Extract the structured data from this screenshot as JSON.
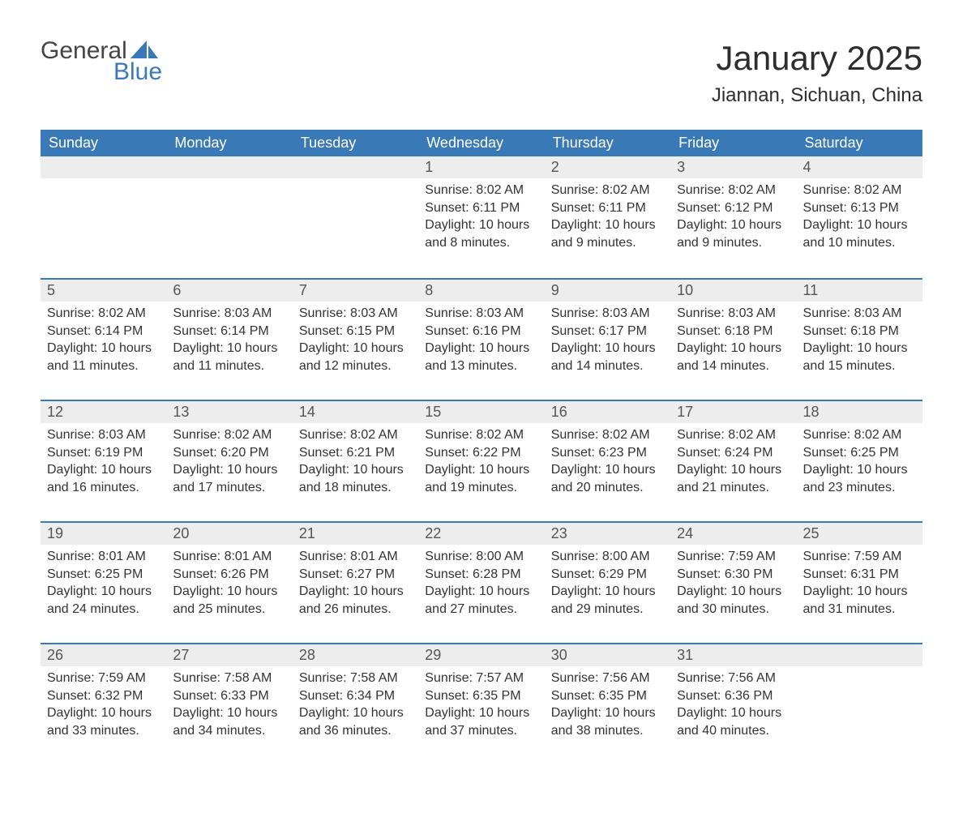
{
  "logo": {
    "word1": "General",
    "word2": "Blue",
    "word1_color": "#444444",
    "word2_color": "#3a79b7",
    "sail_color": "#3a79b7"
  },
  "header": {
    "month_title": "January 2025",
    "location": "Jiannan, Sichuan, China",
    "title_fontsize": 42,
    "location_fontsize": 24
  },
  "calendar": {
    "header_bg": "#3a79b7",
    "header_text_color": "#ffffff",
    "row_separator_color": "#3a79b7",
    "daynum_bg": "#ededed",
    "body_text_color": "#333333",
    "daynum_text_color": "#555555",
    "columns": [
      "Sunday",
      "Monday",
      "Tuesday",
      "Wednesday",
      "Thursday",
      "Friday",
      "Saturday"
    ],
    "weeks": [
      [
        null,
        null,
        null,
        {
          "n": "1",
          "sunrise": "8:02 AM",
          "sunset": "6:11 PM",
          "dl": "10 hours and 8 minutes."
        },
        {
          "n": "2",
          "sunrise": "8:02 AM",
          "sunset": "6:11 PM",
          "dl": "10 hours and 9 minutes."
        },
        {
          "n": "3",
          "sunrise": "8:02 AM",
          "sunset": "6:12 PM",
          "dl": "10 hours and 9 minutes."
        },
        {
          "n": "4",
          "sunrise": "8:02 AM",
          "sunset": "6:13 PM",
          "dl": "10 hours and 10 minutes."
        }
      ],
      [
        {
          "n": "5",
          "sunrise": "8:02 AM",
          "sunset": "6:14 PM",
          "dl": "10 hours and 11 minutes."
        },
        {
          "n": "6",
          "sunrise": "8:03 AM",
          "sunset": "6:14 PM",
          "dl": "10 hours and 11 minutes."
        },
        {
          "n": "7",
          "sunrise": "8:03 AM",
          "sunset": "6:15 PM",
          "dl": "10 hours and 12 minutes."
        },
        {
          "n": "8",
          "sunrise": "8:03 AM",
          "sunset": "6:16 PM",
          "dl": "10 hours and 13 minutes."
        },
        {
          "n": "9",
          "sunrise": "8:03 AM",
          "sunset": "6:17 PM",
          "dl": "10 hours and 14 minutes."
        },
        {
          "n": "10",
          "sunrise": "8:03 AM",
          "sunset": "6:18 PM",
          "dl": "10 hours and 14 minutes."
        },
        {
          "n": "11",
          "sunrise": "8:03 AM",
          "sunset": "6:18 PM",
          "dl": "10 hours and 15 minutes."
        }
      ],
      [
        {
          "n": "12",
          "sunrise": "8:03 AM",
          "sunset": "6:19 PM",
          "dl": "10 hours and 16 minutes."
        },
        {
          "n": "13",
          "sunrise": "8:02 AM",
          "sunset": "6:20 PM",
          "dl": "10 hours and 17 minutes."
        },
        {
          "n": "14",
          "sunrise": "8:02 AM",
          "sunset": "6:21 PM",
          "dl": "10 hours and 18 minutes."
        },
        {
          "n": "15",
          "sunrise": "8:02 AM",
          "sunset": "6:22 PM",
          "dl": "10 hours and 19 minutes."
        },
        {
          "n": "16",
          "sunrise": "8:02 AM",
          "sunset": "6:23 PM",
          "dl": "10 hours and 20 minutes."
        },
        {
          "n": "17",
          "sunrise": "8:02 AM",
          "sunset": "6:24 PM",
          "dl": "10 hours and 21 minutes."
        },
        {
          "n": "18",
          "sunrise": "8:02 AM",
          "sunset": "6:25 PM",
          "dl": "10 hours and 23 minutes."
        }
      ],
      [
        {
          "n": "19",
          "sunrise": "8:01 AM",
          "sunset": "6:25 PM",
          "dl": "10 hours and 24 minutes."
        },
        {
          "n": "20",
          "sunrise": "8:01 AM",
          "sunset": "6:26 PM",
          "dl": "10 hours and 25 minutes."
        },
        {
          "n": "21",
          "sunrise": "8:01 AM",
          "sunset": "6:27 PM",
          "dl": "10 hours and 26 minutes."
        },
        {
          "n": "22",
          "sunrise": "8:00 AM",
          "sunset": "6:28 PM",
          "dl": "10 hours and 27 minutes."
        },
        {
          "n": "23",
          "sunrise": "8:00 AM",
          "sunset": "6:29 PM",
          "dl": "10 hours and 29 minutes."
        },
        {
          "n": "24",
          "sunrise": "7:59 AM",
          "sunset": "6:30 PM",
          "dl": "10 hours and 30 minutes."
        },
        {
          "n": "25",
          "sunrise": "7:59 AM",
          "sunset": "6:31 PM",
          "dl": "10 hours and 31 minutes."
        }
      ],
      [
        {
          "n": "26",
          "sunrise": "7:59 AM",
          "sunset": "6:32 PM",
          "dl": "10 hours and 33 minutes."
        },
        {
          "n": "27",
          "sunrise": "7:58 AM",
          "sunset": "6:33 PM",
          "dl": "10 hours and 34 minutes."
        },
        {
          "n": "28",
          "sunrise": "7:58 AM",
          "sunset": "6:34 PM",
          "dl": "10 hours and 36 minutes."
        },
        {
          "n": "29",
          "sunrise": "7:57 AM",
          "sunset": "6:35 PM",
          "dl": "10 hours and 37 minutes."
        },
        {
          "n": "30",
          "sunrise": "7:56 AM",
          "sunset": "6:35 PM",
          "dl": "10 hours and 38 minutes."
        },
        {
          "n": "31",
          "sunrise": "7:56 AM",
          "sunset": "6:36 PM",
          "dl": "10 hours and 40 minutes."
        },
        null
      ]
    ],
    "labels": {
      "sunrise": "Sunrise:",
      "sunset": "Sunset:",
      "daylight": "Daylight:"
    }
  }
}
